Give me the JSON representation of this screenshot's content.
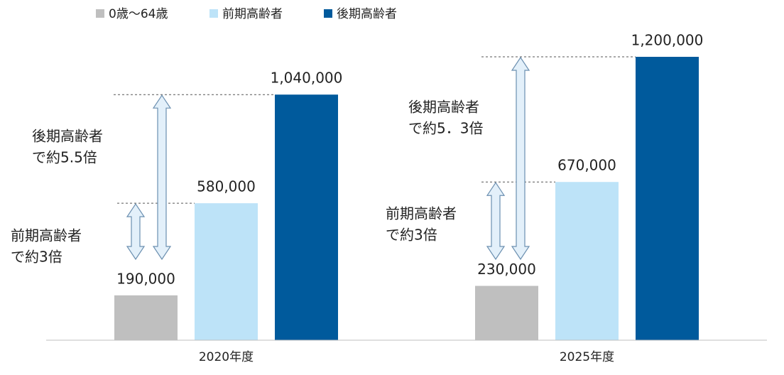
{
  "chart_data": {
    "type": "bar",
    "categories": [
      "2020年度",
      "2025年度"
    ],
    "series": [
      {
        "name": "0歳～64歳",
        "color": "#bfbfbf",
        "values": [
          190000,
          230000
        ],
        "value_labels": [
          "190,000",
          "230,000"
        ]
      },
      {
        "name": "前期高齢者",
        "color": "#bde3f8",
        "values": [
          580000,
          670000
        ],
        "value_labels": [
          "580,000",
          "670,000"
        ]
      },
      {
        "name": "後期高齢者",
        "color": "#005a9c",
        "values": [
          1040000,
          1200000
        ],
        "value_labels": [
          "1,040,000",
          "1,200,000"
        ]
      }
    ],
    "ylim": [
      0,
      1200000
    ],
    "annotations": [
      {
        "lines": [
          "後期高齢者",
          "で約5.5倍"
        ]
      },
      {
        "lines": [
          "前期高齢者",
          "で約3倍"
        ]
      },
      {
        "lines": [
          "後期高齢者",
          "で約5．3倍"
        ]
      },
      {
        "lines": [
          "前期高齢者",
          "で約3倍"
        ]
      }
    ]
  }
}
